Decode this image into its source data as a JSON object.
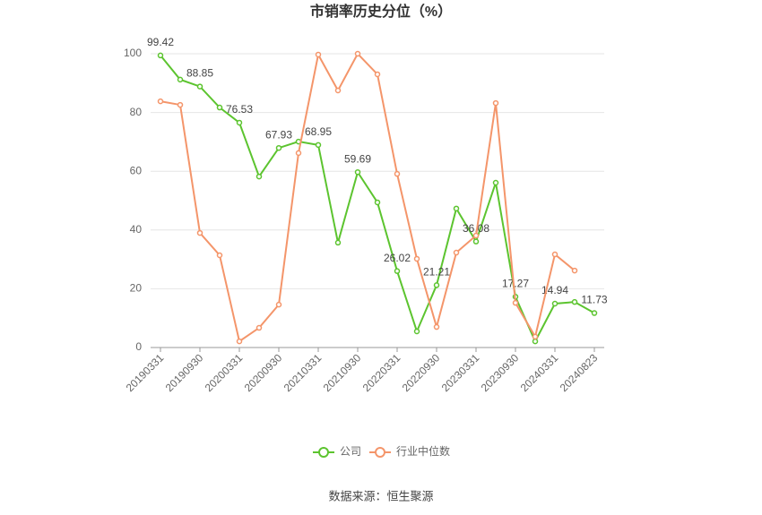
{
  "chart_data": {
    "type": "line",
    "title": "市销率历史分位（%）",
    "source": "数据来源：恒生聚源",
    "categories": [
      "20190331",
      null,
      "20190930",
      null,
      "20200331",
      null,
      "20200930",
      null,
      "20210331",
      null,
      "20210930",
      null,
      "20220331",
      null,
      "20220930",
      null,
      "20230331",
      null,
      "20230930",
      null,
      "20240331",
      null,
      "20240823"
    ],
    "series": [
      {
        "name": "公司",
        "color": "#5cc42f",
        "values": [
          99.42,
          91.2,
          88.85,
          81.7,
          76.53,
          58.2,
          67.93,
          70.1,
          68.95,
          35.7,
          59.69,
          49.4,
          26.02,
          5.5,
          21.21,
          47.3,
          36.08,
          56.1,
          17.27,
          2.1,
          14.94,
          15.5,
          11.73
        ],
        "value_labels": [
          "99.42",
          null,
          "88.85",
          null,
          "76.53",
          null,
          "67.93",
          null,
          "68.95",
          null,
          "59.69",
          null,
          "26.02",
          null,
          "21.21",
          null,
          "36.08",
          null,
          "17.27",
          null,
          "14.94",
          null,
          "11.73"
        ]
      },
      {
        "name": "行业中位数",
        "color": "#f4956a",
        "values": [
          83.8,
          82.6,
          39,
          31.4,
          2.1,
          6.7,
          14.6,
          66.2,
          99.7,
          87.5,
          100,
          93,
          59.1,
          30.2,
          7,
          32.3,
          38.1,
          83.2,
          15.2,
          3.7,
          31.7,
          26.2,
          null
        ]
      }
    ],
    "ylim": [
      0,
      100
    ],
    "yticks": [
      0,
      20,
      40,
      60,
      80,
      100
    ],
    "grid": true,
    "legend": "bottom"
  }
}
